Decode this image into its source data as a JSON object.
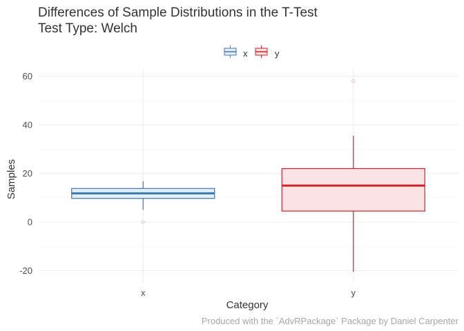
{
  "chart_data": {
    "type": "boxplot",
    "title_lines": [
      "Differences of Sample Distributions in the T-Test",
      "Test Type: Welch"
    ],
    "xlabel": "Category",
    "ylabel": "Samples",
    "caption": "Produced with the `AdvRPackage` Package by Daniel Carpenter",
    "categories": [
      "x",
      "y"
    ],
    "ylim": [
      -25,
      63
    ],
    "y_ticks": [
      -20,
      0,
      20,
      40,
      60
    ],
    "y_tick_labels": [
      "-20",
      "0",
      "20",
      "40",
      "60"
    ],
    "grid": true,
    "legend": {
      "position": "top",
      "entries": [
        "x",
        "y"
      ]
    },
    "series": [
      {
        "name": "x",
        "color": "#3a78b0",
        "fill": "#e3eef8",
        "whisker_low": 5,
        "q1": 9.7,
        "median": 11.8,
        "q3": 13.8,
        "whisker_high": 16.8,
        "outliers": [
          0
        ]
      },
      {
        "name": "y",
        "color": "#cc2025",
        "fill": "#fbe3e4",
        "whisker_low": -20.5,
        "q1": 4.5,
        "median": 15,
        "q3": 22,
        "whisker_high": 35.5,
        "outliers": [
          58
        ]
      }
    ]
  }
}
